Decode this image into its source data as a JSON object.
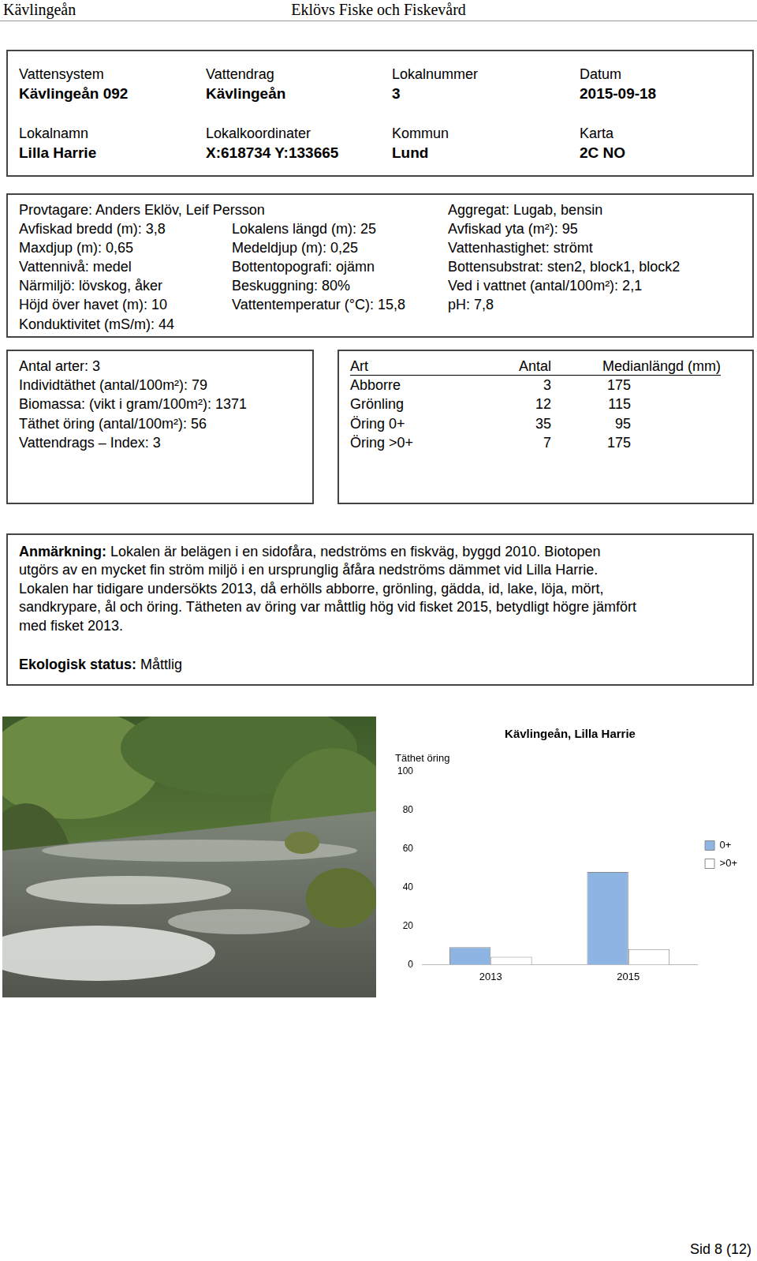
{
  "header": {
    "left": "Kävlingeån",
    "center": "Eklövs Fiske och Fiskevård"
  },
  "site": [
    {
      "label": "Vattensystem",
      "value": "Kävlingeån 092"
    },
    {
      "label": "Vattendrag",
      "value": "Kävlingeån"
    },
    {
      "label": "Lokalnummer",
      "value": "3"
    },
    {
      "label": "Datum",
      "value": "2015-09-18"
    },
    {
      "label": "Lokalnamn",
      "value": "Lilla Harrie"
    },
    {
      "label": "Lokalkoordinater",
      "value": "X:618734 Y:133665"
    },
    {
      "label": "Kommun",
      "value": "Lund"
    },
    {
      "label": "Karta",
      "value": "2C NO"
    }
  ],
  "survey": [
    [
      "Provtagare: Anders Eklöv, Leif Persson",
      "Aggregat: Lugab, bensin"
    ],
    [
      "Avfiskad bredd (m): 3,8",
      "Lokalens längd (m): 25",
      "Avfiskad yta (m²): 95"
    ],
    [
      "Maxdjup (m): 0,65",
      "Medeldjup (m): 0,25",
      "Vattenhastighet: strömt"
    ],
    [
      "Vattennivå: medel",
      "Bottentopografi: ojämn",
      "Bottensubstrat: sten2, block1, block2"
    ],
    [
      "Närmiljö: lövskog, åker",
      "Beskuggning: 80%",
      "Ved i vattnet (antal/100m²): 2,1"
    ],
    [
      "Höjd över havet (m): 10",
      "Vattentemperatur (°C): 15,8",
      "pH: 7,8"
    ],
    [
      "Konduktivitet (mS/m): 44"
    ]
  ],
  "summary": [
    "Antal arter: 3",
    "Individtäthet (antal/100m²): 79",
    "Biomassa: (vikt i gram/100m²): 1371",
    "Täthet öring (antal/100m²): 56",
    "Vattendrags – Index: 3"
  ],
  "catch_table": {
    "columns": [
      "Art",
      "Antal",
      "Medianlängd (mm)"
    ],
    "rows": [
      [
        "Abborre",
        "3",
        "175"
      ],
      [
        "Grönling",
        "12",
        "115"
      ],
      [
        "Öring 0+",
        "35",
        "95"
      ],
      [
        "Öring >0+",
        "7",
        "175"
      ]
    ]
  },
  "remark": {
    "label": "Anmärkning:",
    "lines": [
      "Lokalen är belägen i en sidofåra, nedströms en fiskväg, byggd 2010. Biotopen",
      "utgörs av en mycket fin ström miljö i en ursprunglig åfåra nedströms dämmet vid Lilla Harrie.",
      "Lokalen har tidigare undersökts 2013, då erhölls abborre, grönling, gädda, id, lake, löja, mört,",
      "sandkrypare, ål och öring. Tätheten av öring var måttlig hög vid fisket 2015, betydligt högre jämfört",
      "med fisket 2013."
    ]
  },
  "status": {
    "label": "Ekologisk status:",
    "value": "Måttlig"
  },
  "chart_data": {
    "type": "bar",
    "title": "Kävlingeån, Lilla Harrie",
    "y_label": "Täthet öring",
    "categories": [
      "2013",
      "2015"
    ],
    "series": [
      {
        "name": "0+",
        "color": "#8db4e2",
        "values": [
          9,
          48
        ]
      },
      {
        "name": ">0+",
        "color": "#ffffff",
        "values": [
          4,
          8
        ]
      }
    ],
    "ylim": [
      0,
      100
    ],
    "yticks": [
      0,
      20,
      40,
      60,
      80,
      100
    ],
    "grid": false,
    "legend": "right"
  },
  "footer": "Sid 8 (12)"
}
